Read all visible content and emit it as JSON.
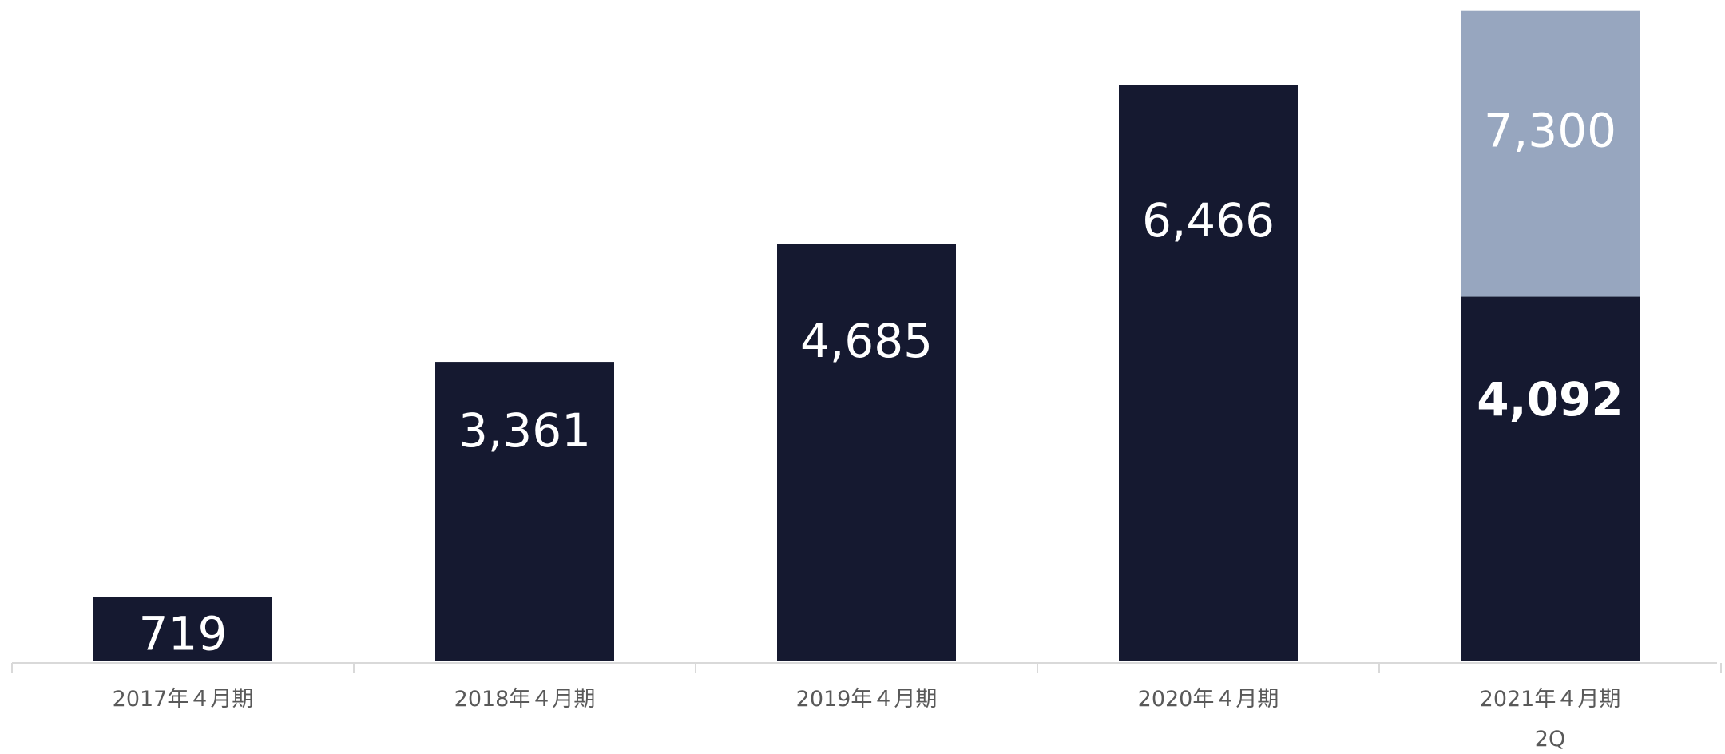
{
  "chart_data": {
    "type": "bar",
    "stacked": true,
    "categories": [
      "2017年４月期",
      "2018年４月期",
      "2019年４月期",
      "2020年４月期",
      "2021年４月期\n2Q"
    ],
    "series": [
      {
        "values": [
          719,
          3361,
          4685,
          6466,
          4092
        ],
        "labels": [
          "719",
          "3,361",
          "4,685",
          "6,466",
          "4,092"
        ],
        "color": "#151930",
        "bold_label_index": 4
      },
      {
        "values": [
          null,
          null,
          null,
          null,
          3208
        ],
        "labels": [
          null,
          null,
          null,
          null,
          "7,300"
        ],
        "color": "#97a6bf",
        "stack_total": [
          null,
          null,
          null,
          null,
          7300
        ]
      }
    ],
    "ylim": [
      0,
      7360
    ],
    "grid": false,
    "legend": "none",
    "axis_color": "#d9d9d9",
    "label_color": "#ffffff",
    "tick_color": "#595959"
  }
}
